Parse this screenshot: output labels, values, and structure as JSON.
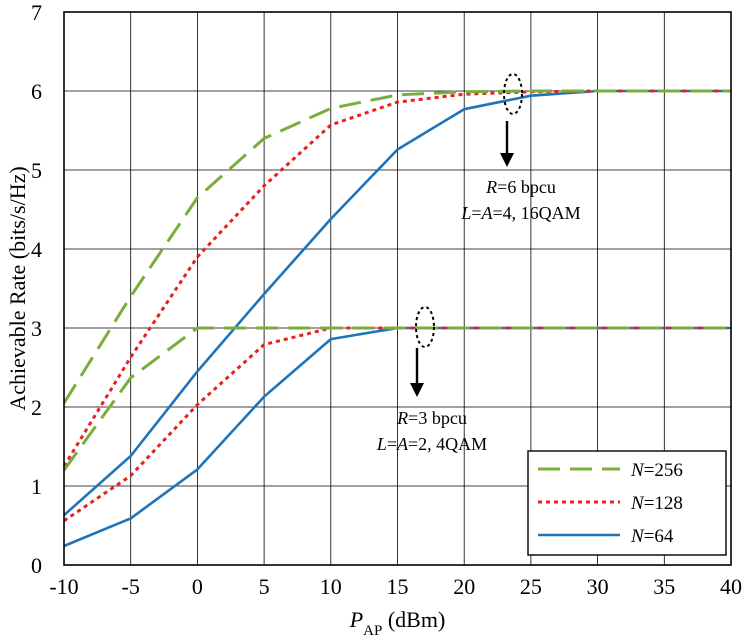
{
  "chart_data": {
    "type": "line",
    "xlabel": {
      "main": "P",
      "sub": "AP",
      "unit": " (dBm)"
    },
    "ylabel": "Achievable Rate (bits/s/Hz)",
    "xlim": [
      -10,
      40
    ],
    "ylim": [
      0,
      7
    ],
    "xticks": [
      -10,
      -5,
      0,
      5,
      10,
      15,
      20,
      25,
      30,
      35,
      40
    ],
    "yticks": [
      0,
      1,
      2,
      3,
      4,
      5,
      6,
      7
    ],
    "grid": true,
    "legend_position": "bottom-right",
    "colors": {
      "N256": "#7aad3c",
      "N128": "#e8201e",
      "N64": "#1f74b9"
    },
    "legend": [
      {
        "key": "N256",
        "italic": "N",
        "rest": "=256"
      },
      {
        "key": "N128",
        "italic": "N",
        "rest": "=128"
      },
      {
        "key": "N64",
        "italic": "N",
        "rest": "=64"
      }
    ],
    "annotations": [
      {
        "line1_italic": "R",
        "line1_rest": "=6 bpcu",
        "line2_italic": "L",
        "line2_mid": "=",
        "line2_italic2": "A",
        "line2_rest": "=4, 16QAM"
      },
      {
        "line1_italic": "R",
        "line1_rest": "=3 bpcu",
        "line2_italic": "L",
        "line2_mid": "=",
        "line2_italic2": "A",
        "line2_rest": "=2, 4QAM"
      }
    ],
    "series": [
      {
        "group": "R6",
        "key": "N256",
        "x": [
          -10,
          -5,
          0,
          5,
          10,
          15,
          20,
          25,
          30,
          35,
          40
        ],
        "y": [
          2.05,
          3.4,
          4.65,
          5.4,
          5.78,
          5.95,
          5.99,
          6.0,
          6.0,
          6.0,
          6.0
        ]
      },
      {
        "group": "R6",
        "key": "N128",
        "x": [
          -10,
          -5,
          0,
          5,
          10,
          15,
          20,
          25,
          30,
          35,
          40
        ],
        "y": [
          1.25,
          2.63,
          3.9,
          4.8,
          5.57,
          5.86,
          5.96,
          5.99,
          6.0,
          6.0,
          6.0
        ]
      },
      {
        "group": "R6",
        "key": "N64",
        "x": [
          -10,
          -5,
          0,
          5,
          10,
          15,
          20,
          25,
          30,
          35,
          40
        ],
        "y": [
          0.63,
          1.38,
          2.45,
          3.43,
          4.38,
          5.26,
          5.77,
          5.94,
          6.0,
          6.0,
          6.0
        ]
      },
      {
        "group": "R3",
        "key": "N256",
        "x": [
          -10,
          -5,
          0,
          5,
          10,
          15,
          20,
          25,
          30,
          35,
          40
        ],
        "y": [
          1.2,
          2.37,
          3.0,
          3.0,
          3.0,
          3.0,
          3.0,
          3.0,
          3.0,
          3.0,
          3.0
        ]
      },
      {
        "group": "R3",
        "key": "N128",
        "x": [
          -10,
          -5,
          0,
          5,
          10,
          15,
          20,
          25,
          30,
          35,
          40
        ],
        "y": [
          0.56,
          1.13,
          2.03,
          2.79,
          3.0,
          3.0,
          3.0,
          3.0,
          3.0,
          3.0,
          3.0
        ]
      },
      {
        "group": "R3",
        "key": "N64",
        "x": [
          -10,
          -5,
          0,
          5,
          10,
          15,
          20,
          25,
          30,
          35,
          40
        ],
        "y": [
          0.24,
          0.59,
          1.21,
          2.13,
          2.86,
          3.0,
          3.0,
          3.0,
          3.0,
          3.0,
          3.0
        ]
      }
    ]
  }
}
